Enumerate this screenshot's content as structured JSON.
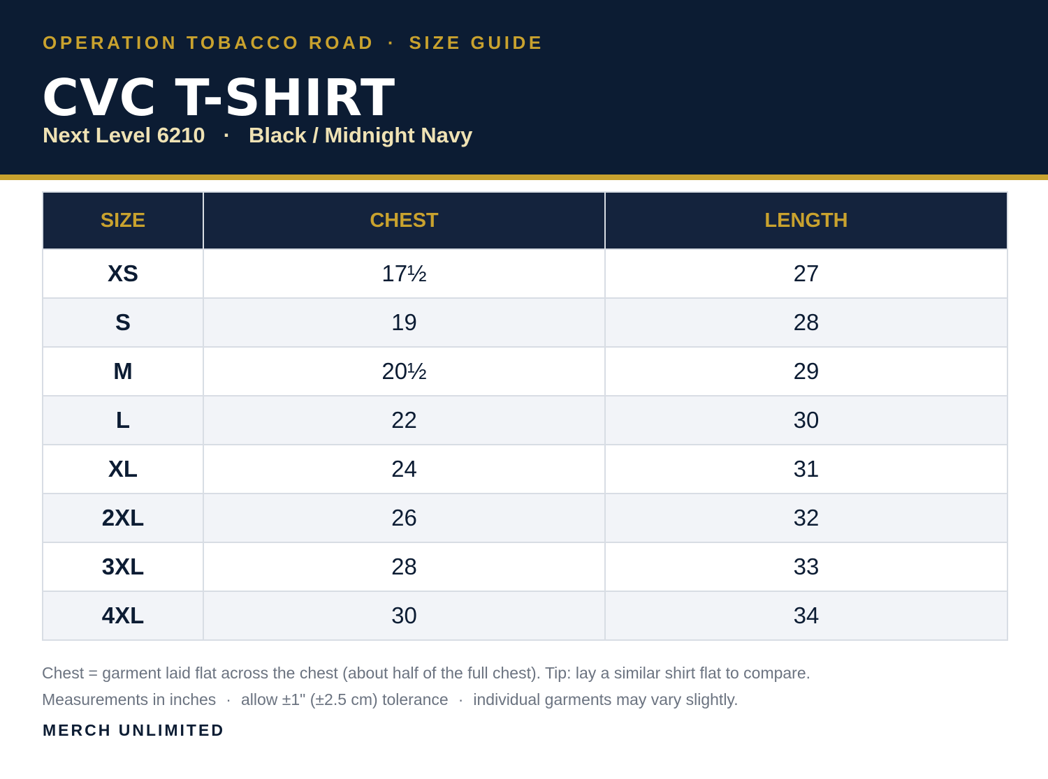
{
  "header": {
    "eyebrow_left": "OPERATION TOBACCO ROAD",
    "eyebrow_sep": "·",
    "eyebrow_right": "SIZE GUIDE",
    "title": "CVC T-SHIRT",
    "subtitle_left": "Next Level 6210",
    "subtitle_sep": "·",
    "subtitle_right": "Black / Midnight Navy"
  },
  "colors": {
    "navy": "#0c1c33",
    "gold": "#c9a22e",
    "cream": "#efe2b4",
    "row_alt": "#f2f4f8"
  },
  "table": {
    "columns": [
      "SIZE",
      "CHEST",
      "LENGTH"
    ],
    "rows": [
      {
        "size": "XS",
        "chest": "17½",
        "length": "27"
      },
      {
        "size": "S",
        "chest": "19",
        "length": "28"
      },
      {
        "size": "M",
        "chest": "20½",
        "length": "29"
      },
      {
        "size": "L",
        "chest": "22",
        "length": "30"
      },
      {
        "size": "XL",
        "chest": "24",
        "length": "31"
      },
      {
        "size": "2XL",
        "chest": "26",
        "length": "32"
      },
      {
        "size": "3XL",
        "chest": "28",
        "length": "33"
      },
      {
        "size": "4XL",
        "chest": "30",
        "length": "34"
      }
    ]
  },
  "notes": {
    "line1": "Chest = garment laid flat across the chest (about half of the full chest). Tip: lay a similar shirt flat to compare.",
    "line2_a": "Measurements in inches",
    "line2_b": "allow ±1\" (±2.5 cm) tolerance",
    "line2_c": "individual garments may vary slightly.",
    "sep": "·"
  },
  "brand": "MERCH UNLIMITED"
}
